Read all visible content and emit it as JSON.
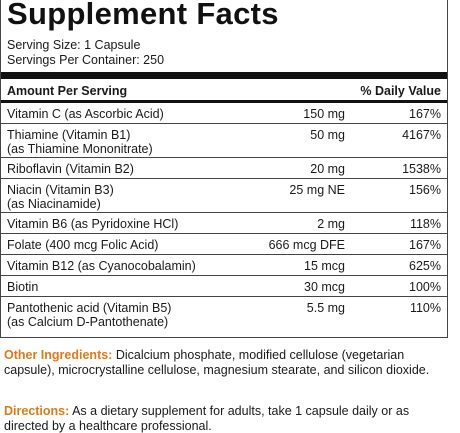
{
  "title": "Supplement Facts",
  "serving_size": "Serving Size: 1 Capsule",
  "servings_per_container": "Servings Per Container: 250",
  "header": {
    "amount_per_serving": "Amount Per Serving",
    "daily_value": "% Daily Value"
  },
  "rows": [
    {
      "name": [
        "Vitamin C (as Ascorbic Acid)"
      ],
      "amount": "150 mg",
      "dv": "167%"
    },
    {
      "name": [
        "Thiamine (Vitamin B1)",
        "(as Thiamine Mononitrate)"
      ],
      "amount": "50 mg",
      "dv": "4167%"
    },
    {
      "name": [
        "Riboflavin (Vitamin B2)"
      ],
      "amount": "20 mg",
      "dv": "1538%"
    },
    {
      "name": [
        "Niacin (Vitamin B3)",
        "(as Niacinamide)"
      ],
      "amount": "25 mg NE",
      "dv": "156%"
    },
    {
      "name": [
        "Vitamin B6 (as Pyridoxine HCl)"
      ],
      "amount": "2 mg",
      "dv": "118%"
    },
    {
      "name": [
        "Folate (400 mcg Folic Acid)"
      ],
      "amount": "666 mcg DFE",
      "dv": "167%"
    },
    {
      "name": [
        "Vitamin B12 (as Cyanocobalamin)"
      ],
      "amount": "15 mcg",
      "dv": "625%"
    },
    {
      "name": [
        "Biotin"
      ],
      "amount": "30 mcg",
      "dv": "100%"
    },
    {
      "name": [
        "Pantothenic acid (Vitamin B5)",
        "(as Calcium D-Pantothenate)"
      ],
      "amount": "5.5 mg",
      "dv": "110%"
    }
  ],
  "other_ingredients": {
    "label": "Other Ingredients:",
    "text": " Dicalcium phosphate, modified cellulose (vegetarian capsule), microcrystalline cellulose, magnesium stearate, and silicon dioxide."
  },
  "directions": {
    "label": "Directions:",
    "text": " As a dietary supplement for adults, take 1 capsule daily or as directed by a healthcare professional."
  },
  "colors": {
    "label_orange": "#e07a16",
    "text": "#1a1a1a"
  }
}
